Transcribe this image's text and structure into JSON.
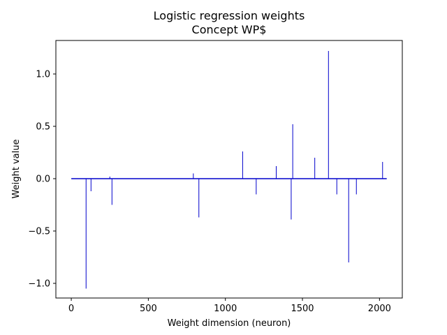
{
  "chart_data": {
    "type": "bar",
    "title": "Logistic regression weights",
    "subtitle": "Concept WP$",
    "xlabel": "Weight dimension (neuron)",
    "ylabel": "Weight value",
    "xlim": [
      -100,
      2148
    ],
    "ylim": [
      -1.14,
      1.32
    ],
    "xticks": [
      0,
      500,
      1000,
      1500,
      2000
    ],
    "yticks": [
      -1.0,
      -0.5,
      0.0,
      0.5,
      1.0
    ],
    "xtick_labels": [
      "0",
      "500",
      "1000",
      "1500",
      "2000"
    ],
    "ytick_labels": [
      "−1.0",
      "−0.5",
      "0.0",
      "0.5",
      "1.0"
    ],
    "baseline_range": [
      0,
      2047
    ],
    "color": "#0000cc",
    "grid": false,
    "x": [
      96,
      128,
      250,
      264,
      792,
      828,
      1112,
      1200,
      1330,
      1427,
      1437,
      1580,
      1669,
      1723,
      1800,
      1850,
      2020
    ],
    "values": [
      -1.05,
      -0.12,
      0.02,
      -0.25,
      0.05,
      -0.37,
      0.26,
      -0.15,
      0.12,
      -0.39,
      0.52,
      0.2,
      1.22,
      -0.15,
      -0.8,
      -0.15,
      0.16
    ]
  }
}
